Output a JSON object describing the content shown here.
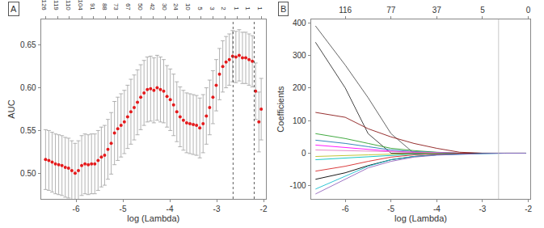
{
  "chart_data": [
    {
      "type": "scatter",
      "panel": "A",
      "x_label": "log (Lambda)",
      "y_label": "AUC",
      "color": "#e41a1c",
      "x": [
        -6.65,
        -6.58,
        -6.51,
        -6.44,
        -6.37,
        -6.3,
        -6.23,
        -6.16,
        -6.09,
        -6.02,
        -5.95,
        -5.88,
        -5.81,
        -5.74,
        -5.67,
        -5.6,
        -5.53,
        -5.46,
        -5.39,
        -5.32,
        -5.25,
        -5.18,
        -5.11,
        -5.04,
        -4.97,
        -4.9,
        -4.83,
        -4.76,
        -4.69,
        -4.62,
        -4.55,
        -4.48,
        -4.41,
        -4.34,
        -4.27,
        -4.2,
        -4.13,
        -4.06,
        -3.99,
        -3.92,
        -3.85,
        -3.78,
        -3.71,
        -3.64,
        -3.57,
        -3.5,
        -3.43,
        -3.36,
        -3.29,
        -3.22,
        -3.15,
        -3.08,
        -3.01,
        -2.94,
        -2.87,
        -2.8,
        -2.73,
        -2.66,
        -2.59,
        -2.52,
        -2.45,
        -2.38,
        -2.31,
        -2.24,
        -2.17,
        -2.1,
        -2.05
      ],
      "values": [
        0.516,
        0.515,
        0.513,
        0.511,
        0.51,
        0.509,
        0.507,
        0.506,
        0.503,
        0.5,
        0.503,
        0.509,
        0.511,
        0.51,
        0.511,
        0.511,
        0.515,
        0.519,
        0.521,
        0.528,
        0.535,
        0.547,
        0.552,
        0.556,
        0.56,
        0.566,
        0.572,
        0.577,
        0.583,
        0.589,
        0.594,
        0.598,
        0.599,
        0.597,
        0.6,
        0.598,
        0.596,
        0.59,
        0.586,
        0.58,
        0.572,
        0.566,
        0.562,
        0.559,
        0.558,
        0.557,
        0.556,
        0.553,
        0.558,
        0.567,
        0.577,
        0.589,
        0.603,
        0.616,
        0.625,
        0.63,
        0.633,
        0.637,
        0.636,
        0.638,
        0.635,
        0.635,
        0.633,
        0.631,
        0.596,
        0.56,
        0.575
      ],
      "errors": [
        0.035,
        0.035,
        0.035,
        0.035,
        0.035,
        0.035,
        0.035,
        0.035,
        0.035,
        0.035,
        0.035,
        0.035,
        0.035,
        0.035,
        0.035,
        0.035,
        0.035,
        0.035,
        0.035,
        0.035,
        0.036,
        0.037,
        0.037,
        0.037,
        0.037,
        0.037,
        0.038,
        0.038,
        0.038,
        0.038,
        0.038,
        0.038,
        0.038,
        0.038,
        0.038,
        0.038,
        0.037,
        0.036,
        0.036,
        0.036,
        0.035,
        0.035,
        0.035,
        0.035,
        0.035,
        0.035,
        0.035,
        0.035,
        0.034,
        0.033,
        0.032,
        0.031,
        0.03,
        0.03,
        0.03,
        0.03,
        0.03,
        0.03,
        0.03,
        0.03,
        0.03,
        0.03,
        0.03,
        0.03,
        0.033,
        0.035,
        0.036
      ],
      "xlim": [
        -6.75,
        -1.95
      ],
      "xticks": [
        -6,
        -5,
        -4,
        -3,
        -2
      ],
      "ylim": [
        0.47,
        0.68
      ],
      "yticks": [
        {
          "value": 0.5,
          "label": "0.50"
        },
        0.55,
        {
          "value": 0.6,
          "label": "0.60"
        },
        0.65
      ],
      "top_ticks": [
        {
          "value": -6.65,
          "label": "126"
        },
        {
          "value": -6.39,
          "label": "119"
        },
        {
          "value": -6.14,
          "label": "110"
        },
        {
          "value": -5.88,
          "label": "104"
        },
        {
          "value": -5.63,
          "label": "91"
        },
        {
          "value": -5.37,
          "label": "88"
        },
        {
          "value": -5.12,
          "label": "73"
        },
        {
          "value": -4.86,
          "label": "67"
        },
        {
          "value": -4.61,
          "label": "50"
        },
        {
          "value": -4.35,
          "label": "42"
        },
        {
          "value": -4.09,
          "label": "30"
        },
        {
          "value": -3.84,
          "label": "24"
        },
        {
          "value": -3.58,
          "label": "10"
        },
        {
          "value": -3.33,
          "label": "5"
        },
        {
          "value": -3.07,
          "label": "3"
        },
        {
          "value": -2.82,
          "label": "2"
        },
        {
          "value": -2.56,
          "label": "1"
        },
        {
          "value": -2.31,
          "label": "1"
        },
        {
          "value": -2.05,
          "label": "1"
        }
      ],
      "reference_lines": [
        -2.65,
        -2.2
      ],
      "grid": false
    },
    {
      "type": "line",
      "panel": "B",
      "x_label": "log (Lambda)",
      "y_label": "Coefficients",
      "x": [
        -6.65,
        -6.0,
        -5.5,
        -5.0,
        -4.5,
        -4.0,
        -3.5,
        -3.0,
        -2.5,
        -2.05
      ],
      "series": [
        {
          "color": "#555555",
          "values": [
            390,
            270,
            170,
            60,
            0,
            0,
            0,
            0,
            0,
            0
          ]
        },
        {
          "color": "#333333",
          "values": [
            340,
            200,
            60,
            0,
            0,
            0,
            0,
            0,
            0,
            0
          ]
        },
        {
          "color": "#8b1a1a",
          "values": [
            125,
            110,
            75,
            50,
            30,
            15,
            3,
            0,
            0,
            0
          ]
        },
        {
          "color": "#2ca02c",
          "values": [
            60,
            45,
            30,
            15,
            8,
            3,
            0,
            0,
            0,
            0
          ]
        },
        {
          "color": "#1f77b4",
          "values": [
            40,
            30,
            20,
            10,
            5,
            2,
            0,
            0,
            0,
            0
          ]
        },
        {
          "color": "#ff00ff",
          "values": [
            25,
            18,
            12,
            6,
            3,
            1,
            0,
            0,
            0,
            0
          ]
        },
        {
          "color": "#e377c2",
          "values": [
            10,
            8,
            6,
            4,
            2,
            1,
            0,
            0,
            0,
            0
          ]
        },
        {
          "color": "#bcbd22",
          "values": [
            -10,
            -8,
            -5,
            -3,
            -1,
            0,
            0,
            0,
            0,
            0
          ]
        },
        {
          "color": "#00bfbf",
          "values": [
            -20,
            -15,
            -10,
            -6,
            -3,
            -1,
            0,
            0,
            0,
            0
          ]
        },
        {
          "color": "#d62728",
          "values": [
            -55,
            -40,
            -25,
            -12,
            -5,
            -2,
            0,
            0,
            0,
            0
          ]
        },
        {
          "color": "#000000",
          "values": [
            -80,
            -60,
            -38,
            -20,
            -10,
            -5,
            -2,
            0,
            0,
            0
          ]
        },
        {
          "color": "#17becf",
          "values": [
            -110,
            -70,
            -40,
            -20,
            -10,
            -5,
            -3,
            -1,
            0,
            0
          ]
        },
        {
          "color": "#9467bd",
          "values": [
            -125,
            -80,
            -45,
            -25,
            -12,
            -6,
            -3,
            -1,
            0,
            0
          ]
        }
      ],
      "xlim": [
        -6.75,
        -1.95
      ],
      "xticks": [
        -6,
        -5,
        -4,
        -3,
        -2
      ],
      "ylim": [
        -140,
        410
      ],
      "yticks": [
        -100,
        0,
        100,
        200,
        300,
        400
      ],
      "top_ticks": [
        {
          "value": -6,
          "label": "116"
        },
        {
          "value": -5,
          "label": "77"
        },
        {
          "value": -4,
          "label": "37"
        },
        {
          "value": -3,
          "label": "5"
        },
        {
          "value": -2,
          "label": "0"
        }
      ],
      "reference_lines": [
        -2.65
      ],
      "grid": false
    }
  ]
}
